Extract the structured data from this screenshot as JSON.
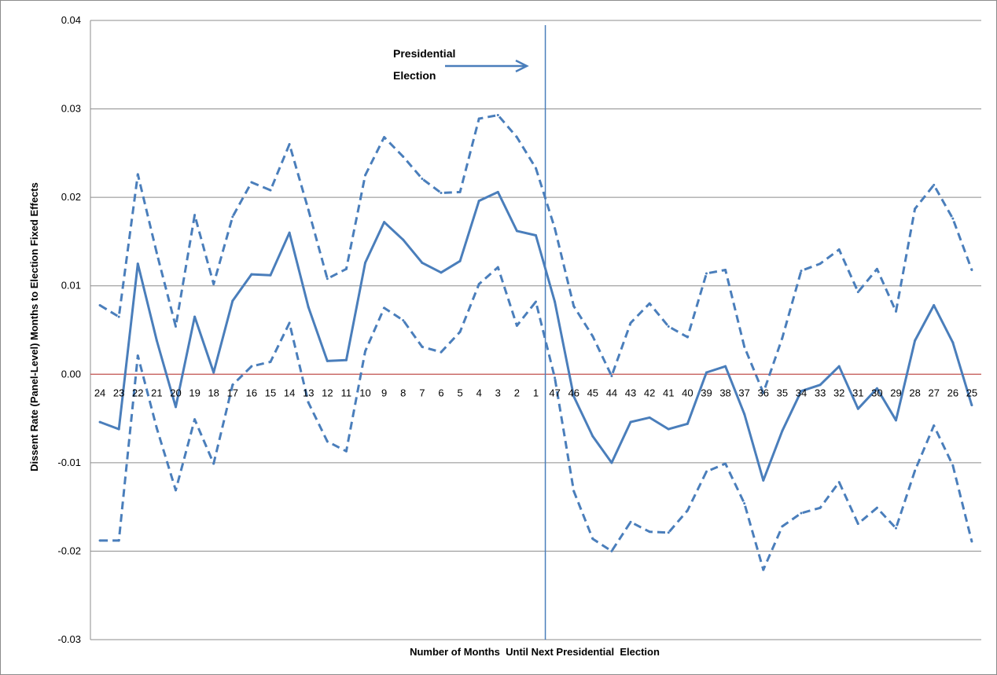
{
  "chart_data": {
    "type": "line",
    "title": "",
    "xlabel": "Number of Months  Until Next Presidential  Election",
    "ylabel": "Dissent Rate (Panel-Level)  Months to Election Fixed Effects",
    "ylim": [
      -0.03,
      0.04
    ],
    "yticks": [
      "-0.03",
      "-0.02",
      "-0.01",
      "0.00",
      "0.01",
      "0.02",
      "0.03",
      "0.04"
    ],
    "categories": [
      "24",
      "23",
      "22",
      "21",
      "20",
      "19",
      "18",
      "17",
      "16",
      "15",
      "14",
      "13",
      "12",
      "11",
      "10",
      "9",
      "8",
      "7",
      "6",
      "5",
      "4",
      "3",
      "2",
      "1",
      "47",
      "46",
      "45",
      "44",
      "43",
      "42",
      "41",
      "40",
      "39",
      "38",
      "37",
      "36",
      "35",
      "34",
      "33",
      "32",
      "31",
      "30",
      "29",
      "28",
      "27",
      "26",
      "25"
    ],
    "grid": true,
    "legend": "none",
    "colors": {
      "series": "#4a7ebb",
      "zero_line": "#c0504d",
      "election_line": "#4a7ebb",
      "grid": "#8c8c8c"
    },
    "election_marker": {
      "after_category": "1",
      "label_line1": "Presidential",
      "label_line2": "Election"
    },
    "series": [
      {
        "style": "solid",
        "values": [
          -0.0054,
          -0.0062,
          0.0125,
          0.0038,
          -0.0037,
          0.0065,
          0.0002,
          0.0083,
          0.0113,
          0.0112,
          0.016,
          0.0076,
          0.0015,
          0.0016,
          0.0126,
          0.0172,
          0.0152,
          0.0126,
          0.0115,
          0.0128,
          0.0196,
          0.0206,
          0.0162,
          0.0157,
          0.0082,
          -0.0025,
          -0.007,
          -0.01,
          -0.0054,
          -0.0049,
          -0.0062,
          -0.0056,
          0.0002,
          0.0009,
          -0.0045,
          -0.012,
          -0.0064,
          -0.0019,
          -0.0012,
          0.0009,
          -0.0039,
          -0.0016,
          -0.0052,
          0.0038,
          0.0078,
          0.0036,
          -0.0035
        ]
      },
      {
        "style": "dashed",
        "values": [
          0.0078,
          0.0065,
          0.0226,
          0.0137,
          0.0054,
          0.018,
          0.0102,
          0.0178,
          0.0217,
          0.0208,
          0.026,
          0.0186,
          0.0108,
          0.0119,
          0.0225,
          0.0268,
          0.0246,
          0.0221,
          0.0205,
          0.0206,
          0.0289,
          0.0293,
          0.0268,
          0.0233,
          0.0165,
          0.0077,
          0.0043,
          -0.0002,
          0.0058,
          0.008,
          0.0054,
          0.0042,
          0.0114,
          0.0118,
          0.0031,
          -0.0021,
          0.0041,
          0.0117,
          0.0125,
          0.0141,
          0.0093,
          0.0119,
          0.0071,
          0.0187,
          0.0214,
          0.0176,
          0.0118
        ]
      },
      {
        "style": "dashed",
        "values": [
          -0.0188,
          -0.0188,
          0.0021,
          -0.0061,
          -0.0131,
          -0.0051,
          -0.0101,
          -0.0012,
          0.0009,
          0.0014,
          0.0058,
          -0.0032,
          -0.0076,
          -0.0087,
          0.0026,
          0.0075,
          0.0061,
          0.0031,
          0.0025,
          0.0048,
          0.0102,
          0.0121,
          0.0055,
          0.0082,
          -0.0004,
          -0.0132,
          -0.0186,
          -0.02,
          -0.0167,
          -0.0178,
          -0.0179,
          -0.0154,
          -0.011,
          -0.0101,
          -0.0146,
          -0.0221,
          -0.0172,
          -0.0157,
          -0.0151,
          -0.0122,
          -0.0169,
          -0.0151,
          -0.0174,
          -0.0109,
          -0.0058,
          -0.0103,
          -0.0189
        ]
      }
    ]
  }
}
